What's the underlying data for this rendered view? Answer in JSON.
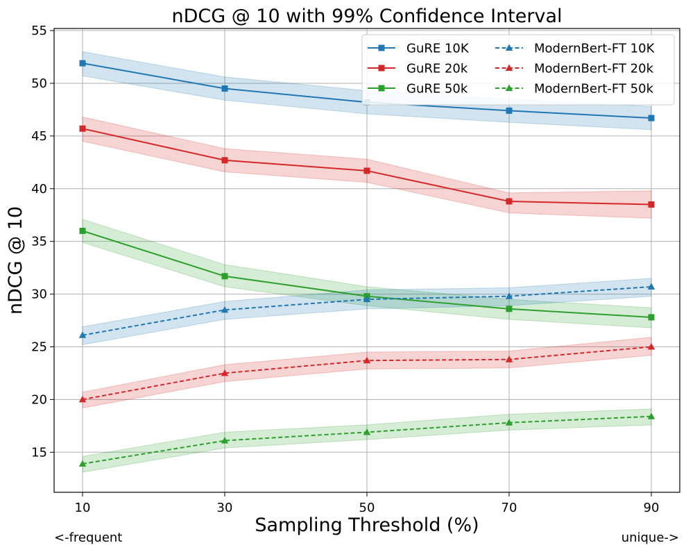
{
  "chart_data": {
    "type": "line",
    "title": "nDCG @ 10 with 99% Confidence Interval",
    "xlabel": "Sampling Threshold (%)",
    "ylabel": "nDCG @ 10",
    "x": [
      10,
      30,
      50,
      70,
      90
    ],
    "x_tick_labels": [
      "10",
      "30",
      "50",
      "70",
      "90"
    ],
    "xlim": [
      6,
      94
    ],
    "ylim": [
      11.2,
      55.2
    ],
    "y_ticks": [
      15,
      20,
      25,
      30,
      35,
      40,
      45,
      50,
      55
    ],
    "grid": true,
    "legend_position": "top-right",
    "legend_columns": 2,
    "series": [
      {
        "name": "GuRE 10K",
        "color": "#1f77b4",
        "style": "solid",
        "marker": "square",
        "values": [
          51.9,
          49.5,
          48.2,
          47.4,
          46.7
        ],
        "ci_lower": [
          50.7,
          48.4,
          47.1,
          46.3,
          45.6
        ],
        "ci_upper": [
          53.0,
          50.6,
          49.3,
          48.5,
          47.8
        ]
      },
      {
        "name": "GuRE 20k",
        "color": "#d62728",
        "style": "solid",
        "marker": "square",
        "values": [
          45.7,
          42.7,
          41.7,
          38.8,
          38.5
        ],
        "ci_lower": [
          44.5,
          41.6,
          40.6,
          37.7,
          37.2
        ],
        "ci_upper": [
          46.8,
          43.8,
          42.8,
          39.6,
          39.8
        ]
      },
      {
        "name": "GuRE 50k",
        "color": "#2ca02c",
        "style": "solid",
        "marker": "square",
        "values": [
          36.0,
          31.7,
          29.8,
          28.6,
          27.8
        ],
        "ci_lower": [
          34.9,
          30.7,
          28.9,
          27.6,
          26.8
        ],
        "ci_upper": [
          37.1,
          32.8,
          30.7,
          29.5,
          28.7
        ]
      },
      {
        "name": "ModernBert-FT 10K",
        "color": "#1f77b4",
        "style": "dashed",
        "marker": "triangle",
        "values": [
          26.1,
          28.5,
          29.5,
          29.8,
          30.7
        ],
        "ci_lower": [
          25.2,
          27.6,
          28.6,
          28.9,
          29.8
        ],
        "ci_upper": [
          26.9,
          29.3,
          30.4,
          30.6,
          31.5
        ]
      },
      {
        "name": "ModernBert-FT 20k",
        "color": "#d62728",
        "style": "dashed",
        "marker": "triangle",
        "values": [
          20.0,
          22.5,
          23.7,
          23.8,
          25.0
        ],
        "ci_lower": [
          19.2,
          21.7,
          22.9,
          23.0,
          24.2
        ],
        "ci_upper": [
          20.7,
          23.3,
          24.5,
          24.6,
          25.9
        ]
      },
      {
        "name": "ModernBert-FT 50k",
        "color": "#2ca02c",
        "style": "dashed",
        "marker": "triangle",
        "values": [
          13.9,
          16.1,
          16.9,
          17.8,
          18.4
        ],
        "ci_lower": [
          13.1,
          15.4,
          16.2,
          17.1,
          17.6
        ],
        "ci_upper": [
          14.6,
          16.9,
          17.6,
          18.6,
          19.1
        ]
      }
    ]
  },
  "annotations": {
    "left": "<-frequent",
    "right": "unique->"
  }
}
